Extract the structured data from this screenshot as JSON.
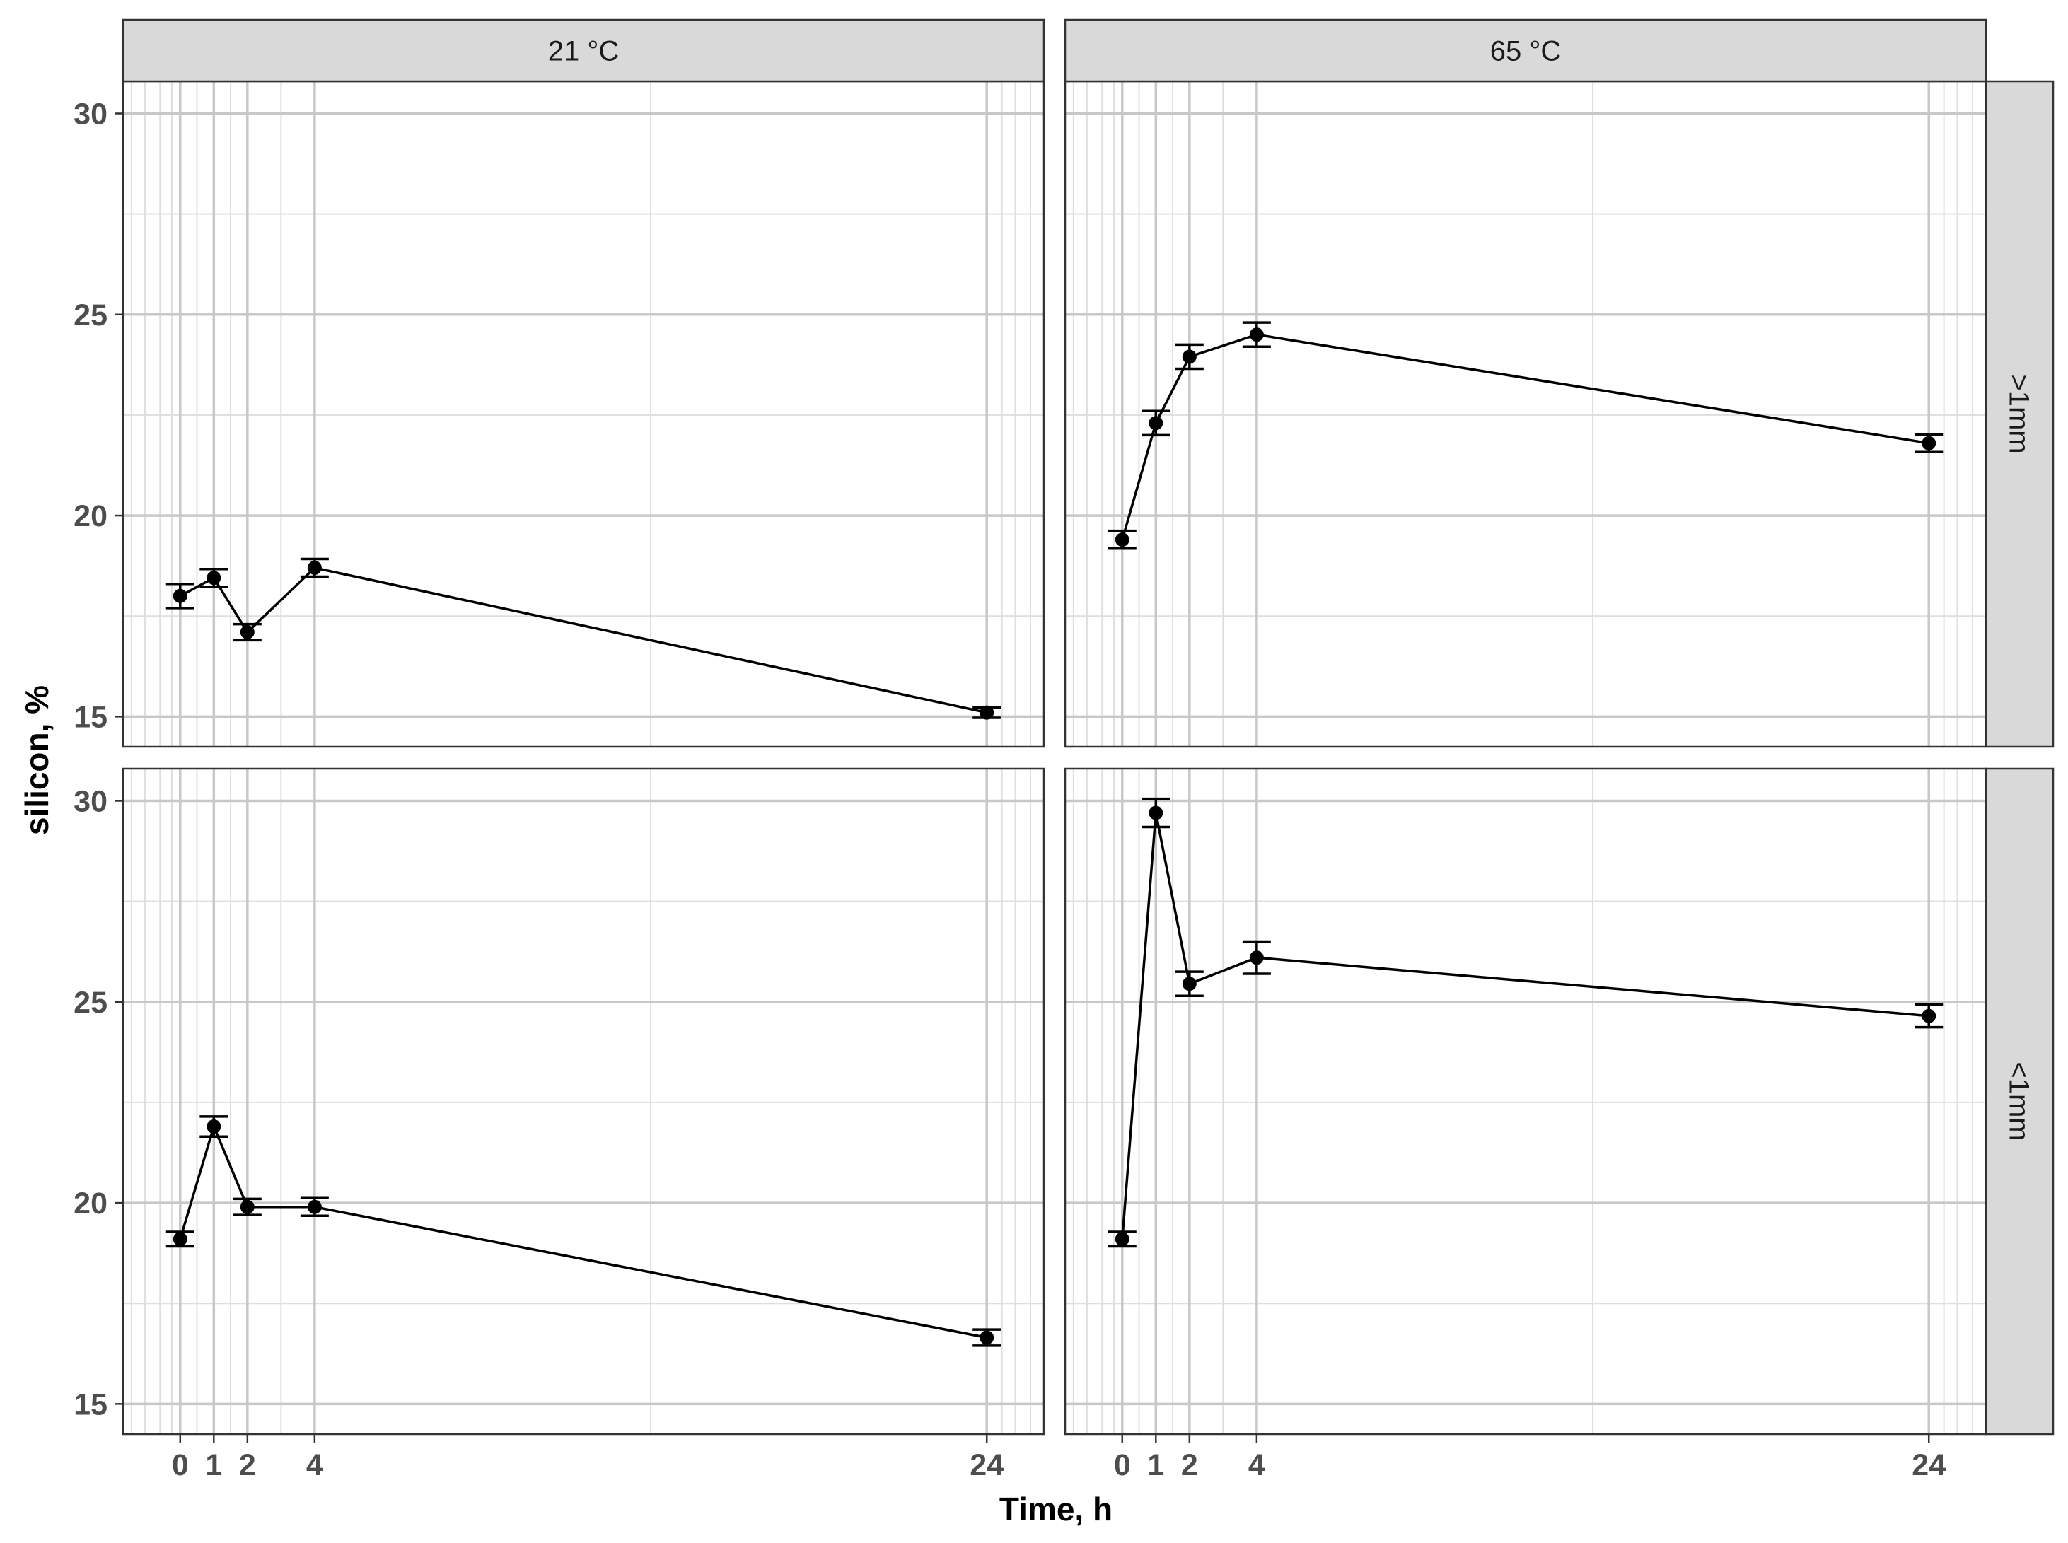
{
  "chart_data": {
    "type": "line",
    "xlabel": "Time, h",
    "ylabel": "silicon, %",
    "x_ticks": [
      0,
      1,
      2,
      4,
      24
    ],
    "y_ticks": [
      15,
      20,
      25,
      30
    ],
    "ylim": [
      14.25,
      30.8
    ],
    "xlim": [
      -1.7,
      25.7
    ],
    "column_facets": [
      "21 °C",
      "65 °C"
    ],
    "row_facets": [
      ">1mm",
      "<1mm"
    ],
    "grid": true,
    "panels": [
      {
        "column": "21 °C",
        "row": ">1mm",
        "x": [
          0,
          1,
          2,
          4,
          24
        ],
        "y": [
          18.0,
          18.45,
          17.1,
          18.7,
          15.1
        ],
        "error": [
          0.3,
          0.22,
          0.2,
          0.22,
          0.13
        ]
      },
      {
        "column": "65 °C",
        "row": ">1mm",
        "x": [
          0,
          1,
          2,
          4,
          24
        ],
        "y": [
          19.4,
          22.3,
          23.95,
          24.5,
          21.8
        ],
        "error": [
          0.22,
          0.3,
          0.3,
          0.3,
          0.22
        ]
      },
      {
        "column": "21 °C",
        "row": "<1mm",
        "x": [
          0,
          1,
          2,
          4,
          24
        ],
        "y": [
          19.1,
          21.9,
          19.9,
          19.9,
          16.65
        ],
        "error": [
          0.18,
          0.25,
          0.2,
          0.22,
          0.2
        ]
      },
      {
        "column": "65 °C",
        "row": "<1mm",
        "x": [
          0,
          1,
          2,
          4,
          24
        ],
        "y": [
          19.1,
          29.7,
          25.45,
          26.1,
          24.65
        ],
        "error": [
          0.18,
          0.35,
          0.3,
          0.4,
          0.28
        ]
      }
    ]
  }
}
